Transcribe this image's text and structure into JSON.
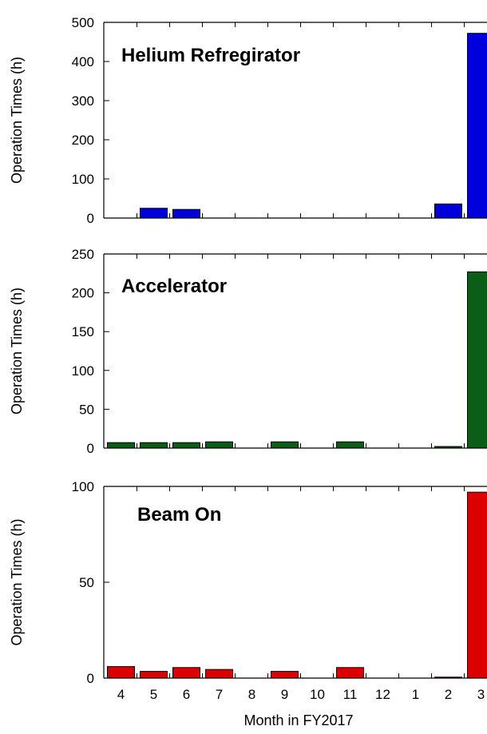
{
  "chart_data": [
    {
      "type": "bar",
      "title": "Helium Refregirator",
      "ylabel": "Operation Times (h)",
      "xlabel": "",
      "categories": [
        "4",
        "5",
        "6",
        "7",
        "8",
        "9",
        "10",
        "11",
        "12",
        "1",
        "2",
        "3"
      ],
      "values": [
        0,
        25,
        22,
        0,
        0,
        0,
        0,
        0,
        0,
        0,
        36,
        472
      ],
      "ylim": [
        0,
        500
      ],
      "yticks": [
        "0",
        "100",
        "200",
        "300",
        "400",
        "500"
      ],
      "bar_color": "#0000dd"
    },
    {
      "type": "bar",
      "title": "Accelerator",
      "ylabel": "Operation Times (h)",
      "xlabel": "",
      "categories": [
        "4",
        "5",
        "6",
        "7",
        "8",
        "9",
        "10",
        "11",
        "12",
        "1",
        "2",
        "3"
      ],
      "values": [
        7,
        7,
        7,
        8,
        0,
        8,
        0,
        8,
        0,
        0,
        2,
        227
      ],
      "ylim": [
        0,
        250
      ],
      "yticks": [
        "0",
        "50",
        "100",
        "150",
        "200",
        "250"
      ],
      "bar_color": "#0b5e17"
    },
    {
      "type": "bar",
      "title": "Beam On",
      "ylabel": "Operation Times (h)",
      "xlabel": "Month in FY2017",
      "categories": [
        "4",
        "5",
        "6",
        "7",
        "8",
        "9",
        "10",
        "11",
        "12",
        "1",
        "2",
        "3"
      ],
      "values": [
        6,
        3.5,
        5.5,
        4.5,
        0,
        3.5,
        0,
        5.5,
        0,
        0,
        0.5,
        97
      ],
      "ylim": [
        0,
        100
      ],
      "yticks": [
        "0",
        "50",
        "100"
      ],
      "bar_color": "#dd0000"
    }
  ]
}
